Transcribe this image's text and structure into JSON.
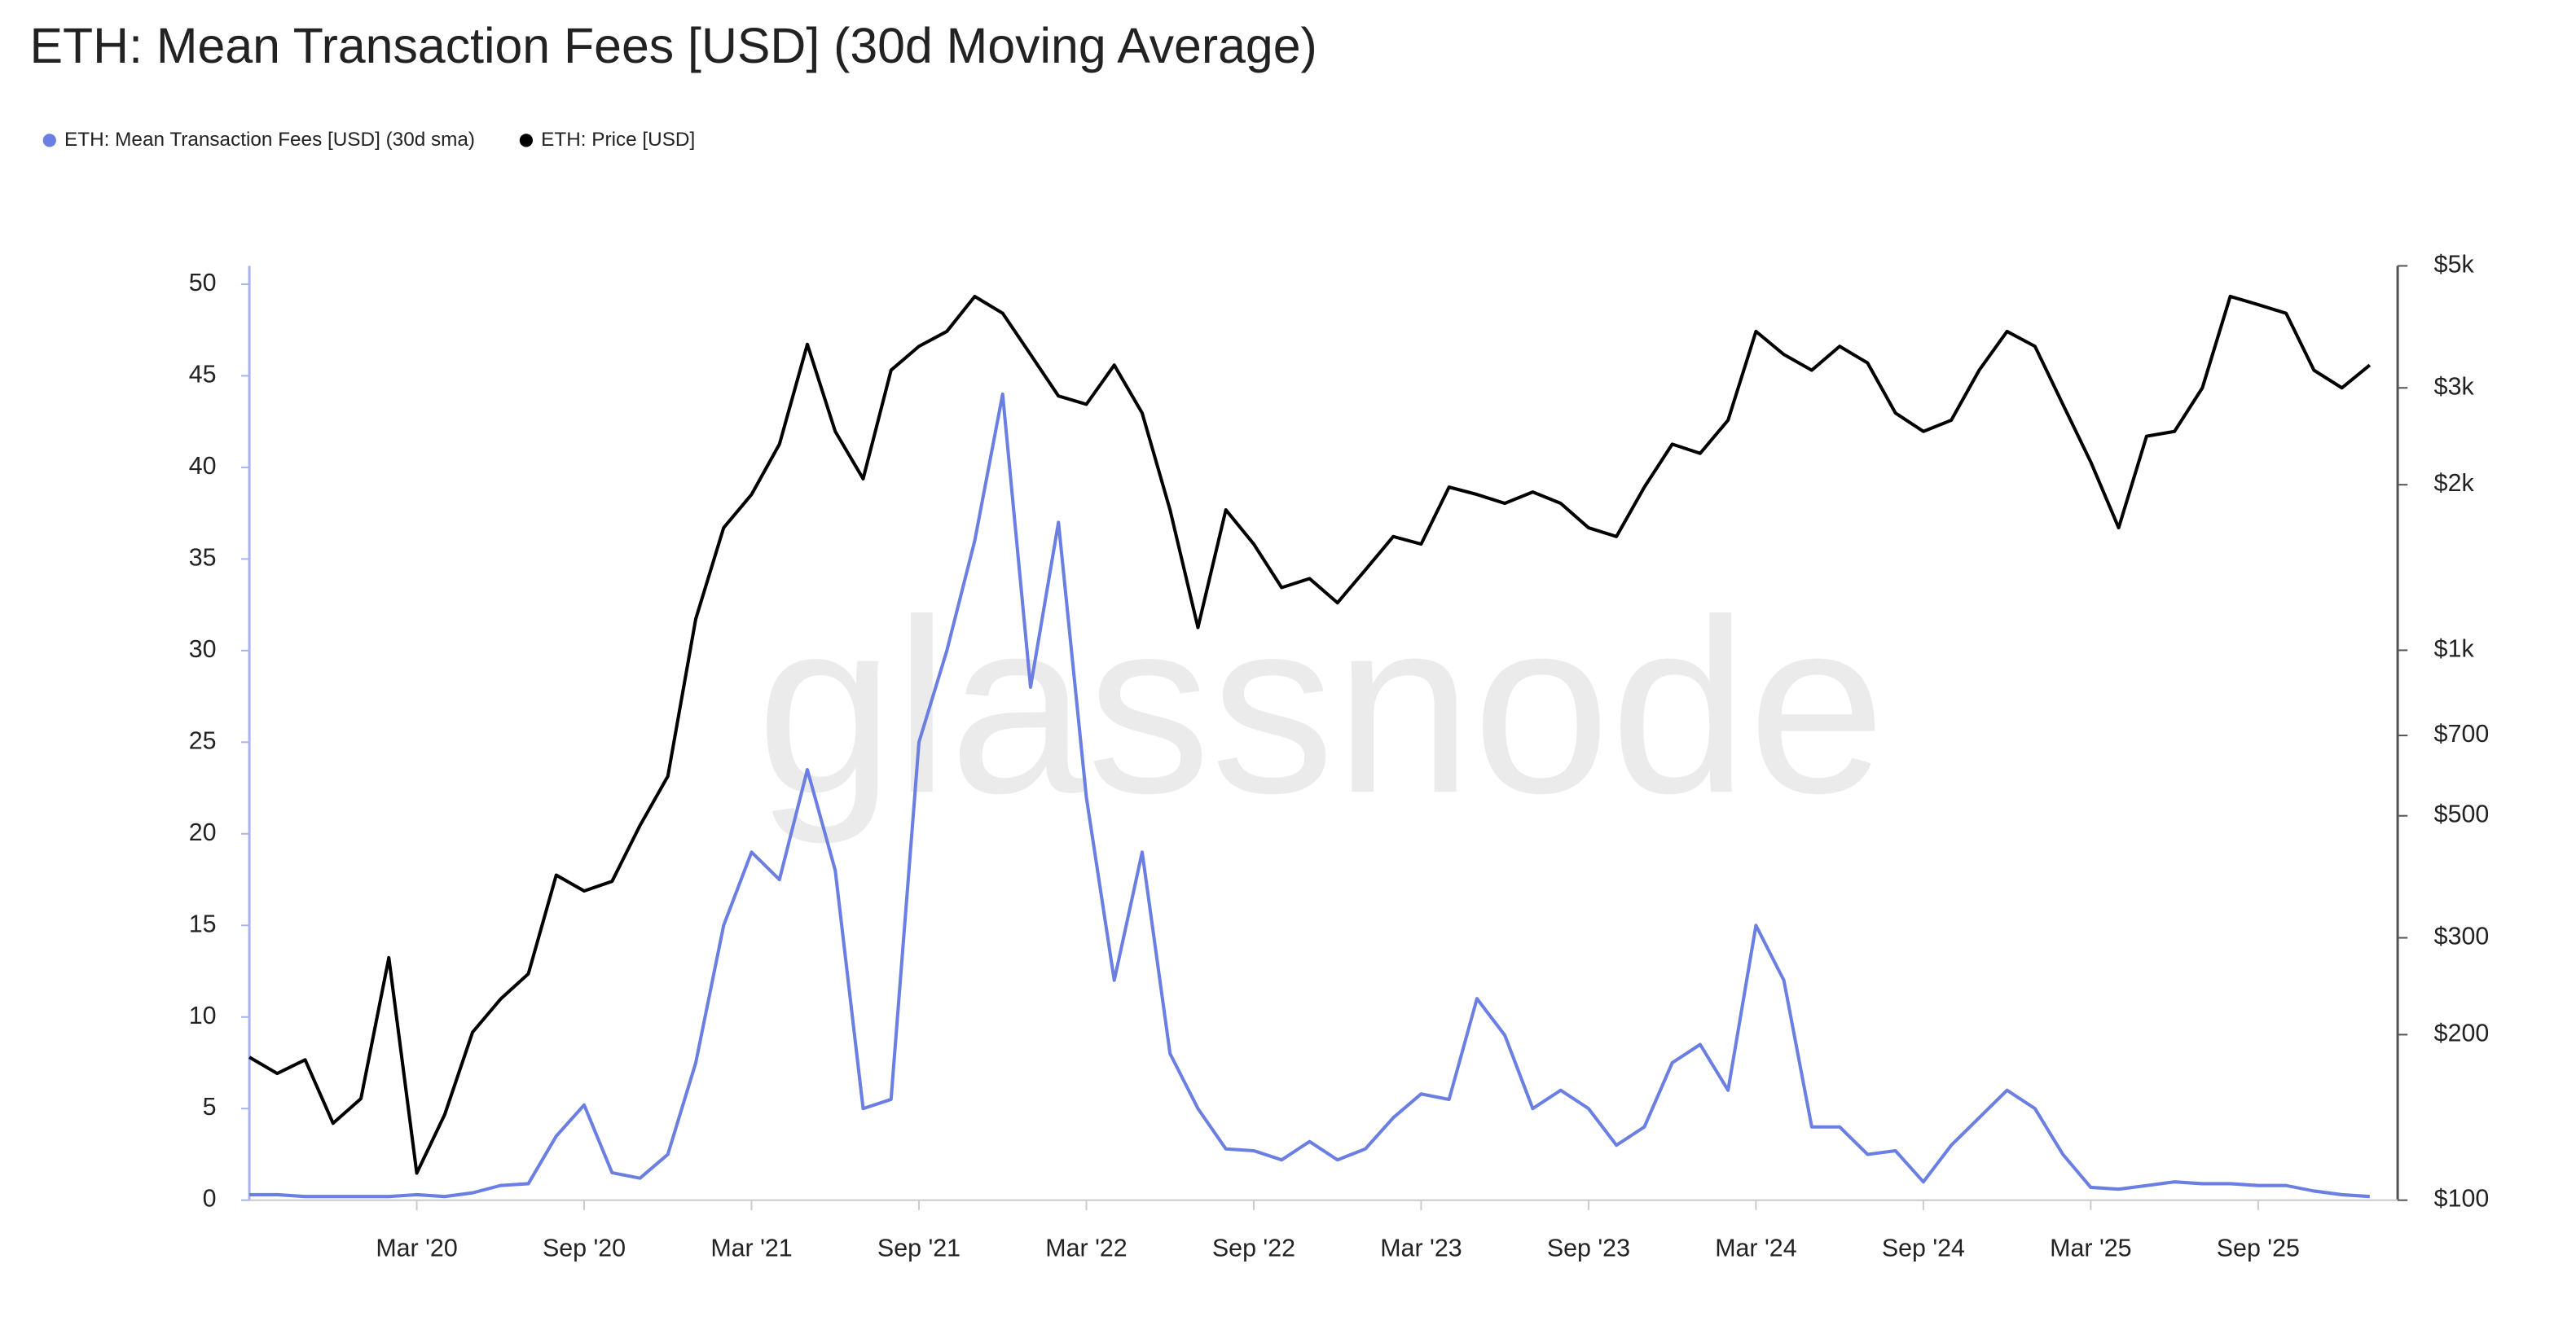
{
  "chart_data": {
    "type": "line",
    "title": "ETH: Mean Transaction Fees [USD] (30d Moving Average)",
    "watermark": "glassnode",
    "legend": "top-left",
    "x": [
      "2019-09",
      "2019-10",
      "2019-11",
      "2019-12",
      "2020-01",
      "2020-02",
      "2020-03",
      "2020-04",
      "2020-05",
      "2020-06",
      "2020-07",
      "2020-08",
      "2020-09",
      "2020-10",
      "2020-11",
      "2020-12",
      "2021-01",
      "2021-02",
      "2021-03",
      "2021-04",
      "2021-05",
      "2021-06",
      "2021-07",
      "2021-08",
      "2021-09",
      "2021-10",
      "2021-11",
      "2021-12",
      "2022-01",
      "2022-02",
      "2022-03",
      "2022-04",
      "2022-05",
      "2022-06",
      "2022-07",
      "2022-08",
      "2022-09",
      "2022-10",
      "2022-11",
      "2022-12",
      "2023-01",
      "2023-02",
      "2023-03",
      "2023-04",
      "2023-05",
      "2023-06",
      "2023-07",
      "2023-08",
      "2023-09",
      "2023-10",
      "2023-11",
      "2023-12",
      "2024-01",
      "2024-02",
      "2024-03",
      "2024-04",
      "2024-05",
      "2024-06",
      "2024-07",
      "2024-08",
      "2024-09",
      "2024-10",
      "2024-11",
      "2024-12",
      "2025-01",
      "2025-02",
      "2025-03",
      "2025-04",
      "2025-05",
      "2025-06",
      "2025-07",
      "2025-08",
      "2025-09",
      "2025-10",
      "2025-11",
      "2025-12",
      "2026-01"
    ],
    "xlim": [
      "2019-09",
      "2026-02"
    ],
    "xticks": [
      {
        "value": "2020-03",
        "label": "Mar '20"
      },
      {
        "value": "2020-09",
        "label": "Sep '20"
      },
      {
        "value": "2021-03",
        "label": "Mar '21"
      },
      {
        "value": "2021-09",
        "label": "Sep '21"
      },
      {
        "value": "2022-03",
        "label": "Mar '22"
      },
      {
        "value": "2022-09",
        "label": "Sep '22"
      },
      {
        "value": "2023-03",
        "label": "Mar '23"
      },
      {
        "value": "2023-09",
        "label": "Sep '23"
      },
      {
        "value": "2024-03",
        "label": "Mar '24"
      },
      {
        "value": "2024-09",
        "label": "Sep '24"
      },
      {
        "value": "2025-03",
        "label": "Mar '25"
      },
      {
        "value": "2025-09",
        "label": "Sep '25"
      }
    ],
    "ylim": [
      0,
      51
    ],
    "yticks": [
      0,
      5,
      10,
      15,
      20,
      25,
      30,
      35,
      40,
      45,
      50
    ],
    "y2lim": [
      100,
      5000
    ],
    "y2scale": "log",
    "y2ticks": [
      {
        "value": 100,
        "label": "$100"
      },
      {
        "value": 200,
        "label": "$200"
      },
      {
        "value": 300,
        "label": "$300"
      },
      {
        "value": 500,
        "label": "$500"
      },
      {
        "value": 700,
        "label": "$700"
      },
      {
        "value": 1000,
        "label": "$1k"
      },
      {
        "value": 2000,
        "label": "$2k"
      },
      {
        "value": 3000,
        "label": "$3k"
      },
      {
        "value": 5000,
        "label": "$5k"
      }
    ],
    "series": [
      {
        "name": "ETH: Mean Transaction Fees [USD] (30d sma)",
        "color": "#6b7fe3",
        "axis": "y",
        "values": [
          0.3,
          0.3,
          0.2,
          0.2,
          0.2,
          0.2,
          0.3,
          0.2,
          0.4,
          0.8,
          0.9,
          3.5,
          5.2,
          1.5,
          1.2,
          2.5,
          7.5,
          15,
          19,
          17.5,
          23.5,
          18,
          5,
          5.5,
          25,
          30,
          36,
          44,
          28,
          37,
          22,
          12,
          19,
          8,
          5,
          2.8,
          2.7,
          2.2,
          3.2,
          2.2,
          2.8,
          4.5,
          5.8,
          5.5,
          11,
          9,
          5,
          6,
          5,
          3,
          4,
          7.5,
          8.5,
          6,
          15,
          12,
          4,
          4,
          2.5,
          2.7,
          1,
          3,
          4.5,
          6,
          5,
          2.5,
          0.7,
          0.6,
          0.8,
          1,
          0.9,
          0.9,
          0.8,
          0.8,
          0.5,
          0.3,
          0.2
        ]
      },
      {
        "name": "ETH: Price [USD]",
        "color": "#000000",
        "axis": "y2",
        "values": [
          182,
          170,
          180,
          138,
          153,
          276,
          112,
          143,
          202,
          232,
          258,
          390,
          365,
          380,
          480,
          590,
          1140,
          1670,
          1920,
          2370,
          3600,
          2500,
          2050,
          3230,
          3570,
          3800,
          4400,
          4100,
          3450,
          2900,
          2800,
          3300,
          2700,
          1800,
          1100,
          1800,
          1560,
          1300,
          1350,
          1220,
          1400,
          1610,
          1560,
          1980,
          1920,
          1850,
          1940,
          1850,
          1670,
          1610,
          1980,
          2370,
          2280,
          2620,
          3800,
          3450,
          3230,
          3570,
          3330,
          2700,
          2500,
          2620,
          3230,
          3800,
          3570,
          2800,
          2200,
          1670,
          2450,
          2500,
          3000,
          4400,
          4250,
          4100,
          3230,
          3000,
          3300
        ]
      }
    ]
  }
}
